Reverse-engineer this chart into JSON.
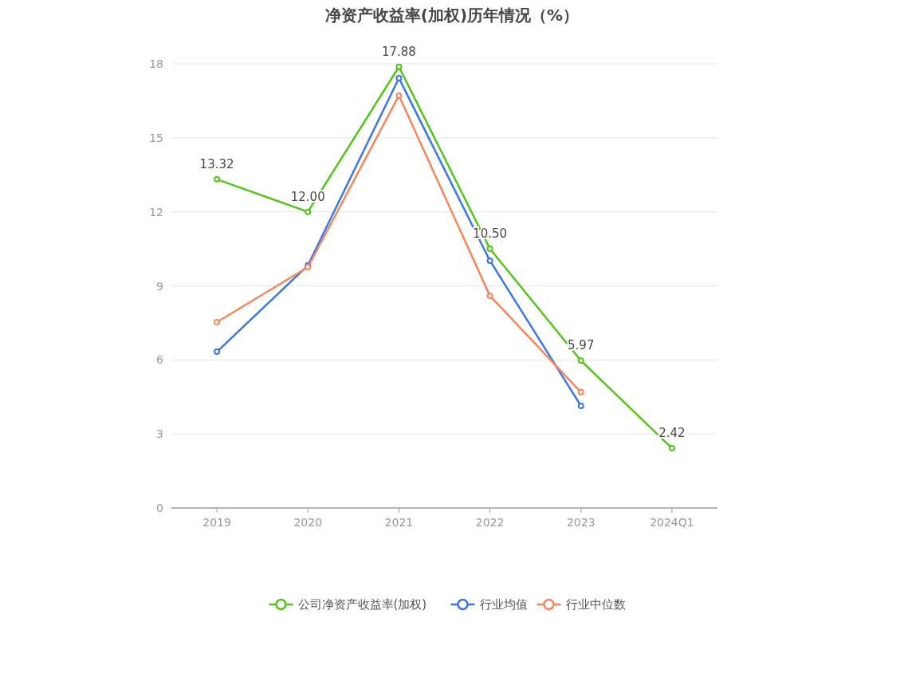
{
  "chart_data": {
    "type": "line",
    "title": "净资产收益率(加权)历年情况（%）",
    "categories": [
      "2019",
      "2020",
      "2021",
      "2022",
      "2023",
      "2024Q1"
    ],
    "series": [
      {
        "name": "公司净资产收益率(加权)",
        "color": "#52c41a",
        "values": [
          13.32,
          12.0,
          17.88,
          10.5,
          5.97,
          2.42
        ],
        "value_labels": [
          "13.32",
          "12.00",
          "17.88",
          "10.50",
          "5.97",
          "2.42"
        ]
      },
      {
        "name": "行业均值",
        "color": "#3a76e8",
        "values": [
          6.33,
          9.83,
          17.42,
          10.02,
          4.14,
          null
        ]
      },
      {
        "name": "行业中位数",
        "color": "#f5875a",
        "values": [
          7.53,
          9.76,
          16.71,
          8.6,
          4.69,
          null
        ]
      }
    ],
    "ylim": [
      0,
      18
    ],
    "yticks": [
      0,
      3,
      6,
      9,
      12,
      15,
      18
    ],
    "grid": "y",
    "legend": "bottom",
    "marker": "circle"
  }
}
